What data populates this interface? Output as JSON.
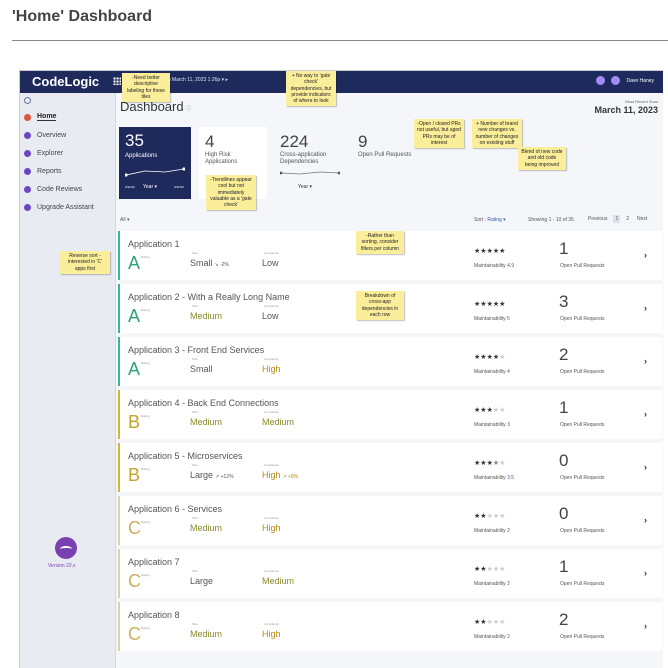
{
  "page_title": "'Home' Dashboard",
  "app": {
    "logo": "CodeLogic",
    "date_nav": "◂  March 11, 2023 1:26p  ▾  ▸",
    "user_name": "Dave Haney"
  },
  "sidebar": {
    "items": [
      {
        "label": "Home",
        "icon": "home-icon"
      },
      {
        "label": "Overview",
        "icon": "overview-icon"
      },
      {
        "label": "Explorer",
        "icon": "explorer-icon"
      },
      {
        "label": "Reports",
        "icon": "reports-icon"
      },
      {
        "label": "Code Reviews",
        "icon": "code-reviews-icon"
      },
      {
        "label": "Upgrade Assistant",
        "icon": "upgrade-icon"
      }
    ],
    "version": "Version 22.x"
  },
  "header": {
    "title": "Dashboard",
    "scan_label": "Most Recent Scan",
    "scan_date": "March 11, 2023"
  },
  "tiles": {
    "applications": {
      "value": "35",
      "label": "Applications",
      "dropdown": "Year ▾",
      "date_left": "3/11/22",
      "date_right": "3/11/23"
    },
    "high_risk": {
      "value": "4",
      "label": "High Risk Applications"
    },
    "cross_app": {
      "value": "224",
      "label": "Cross-application Dependencies",
      "dropdown": "Year ▾"
    },
    "open_prs": {
      "value": "9",
      "label": "Open Pull Requests"
    }
  },
  "list": {
    "filter": "All ▾",
    "sort_label": "Sort :",
    "sort_value": "Rating ▾",
    "showing": "Showing 1 - 10 of 35",
    "previous": "Previous",
    "pages": [
      "1",
      "2"
    ],
    "next": "Next",
    "rating_caption": "Rating",
    "size_caption": "Size",
    "complexity_caption": "Complexity",
    "maintainability_label": "Maintainability",
    "pr_label": "Open Pull Requests"
  },
  "apps": [
    {
      "name": "Application 1",
      "grade": "A",
      "size": "Small",
      "size_trend": "↘ -2%",
      "complexity": "Low",
      "complexity_trend": "",
      "stars": 5,
      "maintainability": "4.9",
      "prs": "1"
    },
    {
      "name": "Application 2 - With a Really Long Name",
      "grade": "A",
      "size": "Medium",
      "size_trend": "",
      "complexity": "Low",
      "complexity_trend": "",
      "stars": 5,
      "maintainability": "5",
      "prs": "3"
    },
    {
      "name": "Application 3 - Front End Services",
      "grade": "A",
      "size": "Small",
      "size_trend": "",
      "complexity": "High",
      "complexity_trend": "",
      "stars": 4,
      "maintainability": "4",
      "prs": "2"
    },
    {
      "name": "Application 4 - Back End Connections",
      "grade": "B",
      "size": "Medium",
      "size_trend": "",
      "complexity": "Medium",
      "complexity_trend": "",
      "stars": 3,
      "maintainability": "3",
      "prs": "1"
    },
    {
      "name": "Application 5 - Microservices",
      "grade": "B",
      "size": "Large",
      "size_trend": "↗ +12%",
      "complexity": "High",
      "complexity_trend": "↗ +8%",
      "stars": 3.5,
      "maintainability": "3.5",
      "prs": "0"
    },
    {
      "name": "Application 6 - Services",
      "grade": "C",
      "size": "Medium",
      "size_trend": "",
      "complexity": "High",
      "complexity_trend": "",
      "stars": 2,
      "maintainability": "2",
      "prs": "0"
    },
    {
      "name": "Application 7",
      "grade": "C",
      "size": "Large",
      "size_trend": "",
      "complexity": "Medium",
      "complexity_trend": "",
      "stars": 2,
      "maintainability": "2",
      "prs": "1"
    },
    {
      "name": "Application 8",
      "grade": "C",
      "size": "Medium",
      "size_trend": "",
      "complexity": "High",
      "complexity_trend": "",
      "stars": 2,
      "maintainability": "2",
      "prs": "2"
    }
  ],
  "notes": [
    "-Need better descriptive labeling for these tiles",
    "+ No way to 'gate check' dependencies, but provide indicators of where to look",
    "-Open / closed PRs not useful, but aged PRs may be of interest",
    "+ Number of brand new changes vs. number of changes on existing stuff",
    "Blend of new code and old code being improved",
    "-Trendlines appear cool but not immediately valuable as a 'gate check'",
    "Reverse sort - interested in 'C' apps first",
    "-Rather than sorting, consider filters per column",
    "Breakdown of cross-app dependencies in each row"
  ],
  "colors": {
    "topbar": "#1f2a5c",
    "grade_a": "#2fa27a",
    "grade_b": "#c4a22c",
    "grade_c": "#c9b060",
    "sticky_note": "#fbee9a"
  }
}
